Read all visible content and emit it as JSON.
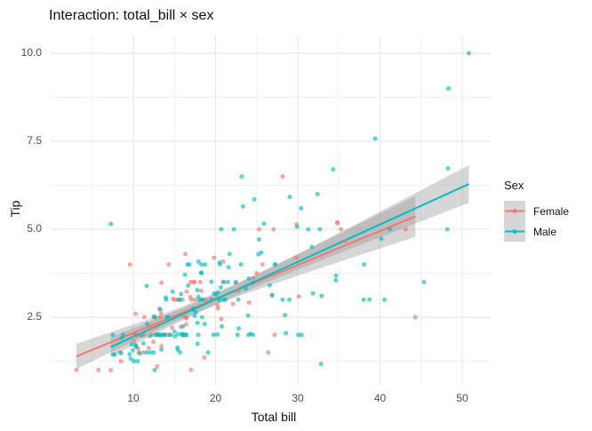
{
  "chart_data": {
    "type": "scatter",
    "title": "Interaction: total_bill × sex",
    "xlabel": "Total bill",
    "ylabel": "Tip",
    "xlim": [
      0,
      53.5
    ],
    "ylim": [
      0.55,
      10.5
    ],
    "grid": true,
    "x_ticks": {
      "values": [
        10,
        20,
        30,
        40,
        50
      ],
      "labels": [
        "10",
        "20",
        "30",
        "40",
        "50"
      ],
      "minor": [
        5,
        15,
        25,
        35,
        45
      ]
    },
    "y_ticks": {
      "values": [
        2.5,
        5,
        7.5,
        10
      ],
      "labels": [
        "2.5",
        "5.0",
        "7.5",
        "10.0"
      ],
      "minor": [
        1.25,
        3.75,
        6.25,
        8.75
      ]
    },
    "colors": {
      "female": "#F8766D",
      "male": "#00BFC4",
      "ribbon": "#999999",
      "grid_major": "#E8E8E8",
      "grid_minor": "#F2F2F2",
      "tick_text": "#4D4D4D"
    },
    "legend": {
      "title": "Sex",
      "position": "right",
      "entries": [
        {
          "label": "Female",
          "color": "#F8766D"
        },
        {
          "label": "Male",
          "color": "#00BFC4"
        }
      ]
    },
    "series": [
      {
        "name": "Female",
        "color": "#F8766D",
        "points": [
          [
            16.99,
            1.01
          ],
          [
            24.59,
            3.61
          ],
          [
            35.26,
            5.0
          ],
          [
            14.83,
            3.02
          ],
          [
            10.33,
            1.67
          ],
          [
            16.97,
            3.5
          ],
          [
            20.29,
            2.75
          ],
          [
            15.77,
            2.23
          ],
          [
            19.65,
            3.0
          ],
          [
            15.06,
            3.0
          ],
          [
            20.69,
            2.45
          ],
          [
            16.93,
            3.07
          ],
          [
            10.29,
            2.6
          ],
          [
            34.81,
            5.2
          ],
          [
            26.41,
            1.5
          ],
          [
            16.45,
            2.47
          ],
          [
            3.07,
            1.0
          ],
          [
            17.07,
            3.0
          ],
          [
            26.86,
            3.14
          ],
          [
            25.28,
            5.0
          ],
          [
            14.73,
            2.2
          ],
          [
            10.07,
            1.83
          ],
          [
            34.83,
            5.17
          ],
          [
            5.75,
            1.0
          ],
          [
            16.32,
            4.3
          ],
          [
            22.75,
            3.25
          ],
          [
            11.35,
            2.5
          ],
          [
            15.38,
            3.0
          ],
          [
            44.3,
            2.5
          ],
          [
            22.42,
            3.48
          ],
          [
            20.92,
            4.08
          ],
          [
            14.31,
            4.0
          ],
          [
            7.25,
            1.0
          ],
          [
            25.71,
            4.0
          ],
          [
            17.31,
            3.5
          ],
          [
            10.65,
            1.5
          ],
          [
            12.43,
            1.8
          ],
          [
            24.08,
            2.92
          ],
          [
            13.42,
            1.68
          ],
          [
            12.48,
            2.52
          ],
          [
            29.8,
            4.2
          ],
          [
            14.52,
            2.0
          ],
          [
            11.38,
            2.0
          ],
          [
            20.27,
            2.83
          ],
          [
            11.17,
            1.5
          ],
          [
            12.26,
            2.0
          ],
          [
            18.26,
            3.25
          ],
          [
            8.51,
            1.25
          ],
          [
            10.33,
            2.0
          ],
          [
            14.15,
            2.0
          ],
          [
            13.16,
            2.75
          ],
          [
            17.47,
            3.5
          ],
          [
            27.05,
            5.0
          ],
          [
            16.43,
            2.3
          ],
          [
            8.35,
            1.5
          ],
          [
            18.64,
            1.36
          ],
          [
            11.87,
            1.63
          ],
          [
            29.85,
            5.14
          ],
          [
            25.0,
            3.75
          ],
          [
            13.39,
            2.61
          ],
          [
            16.21,
            2.0
          ],
          [
            17.51,
            3.0
          ],
          [
            10.59,
            1.61
          ],
          [
            10.63,
            2.0
          ],
          [
            9.6,
            4.0
          ],
          [
            20.9,
            3.5
          ],
          [
            18.15,
            3.5
          ],
          [
            19.81,
            4.19
          ],
          [
            43.11,
            5.0
          ],
          [
            13.0,
            2.0
          ],
          [
            12.74,
            2.01
          ],
          [
            13.0,
            2.0
          ],
          [
            16.4,
            2.5
          ],
          [
            16.47,
            3.23
          ],
          [
            12.76,
            2.23
          ],
          [
            13.27,
            2.5
          ],
          [
            28.17,
            6.5
          ],
          [
            12.9,
            1.1
          ],
          [
            30.14,
            3.09
          ],
          [
            12.16,
            2.2
          ],
          [
            13.42,
            3.48
          ],
          [
            15.98,
            3.0
          ],
          [
            16.27,
            2.5
          ],
          [
            10.09,
            2.0
          ],
          [
            22.12,
            2.88
          ],
          [
            35.83,
            4.67
          ],
          [
            27.18,
            2.0
          ],
          [
            18.78,
            3.0
          ]
        ]
      },
      {
        "name": "Male",
        "color": "#00BFC4",
        "points": [
          [
            10.34,
            1.66
          ],
          [
            21.01,
            3.5
          ],
          [
            23.68,
            3.31
          ],
          [
            25.29,
            4.71
          ],
          [
            8.77,
            2.0
          ],
          [
            26.88,
            3.12
          ],
          [
            15.04,
            1.96
          ],
          [
            14.78,
            3.23
          ],
          [
            10.27,
            1.71
          ],
          [
            15.42,
            1.57
          ],
          [
            18.43,
            3.0
          ],
          [
            21.58,
            3.92
          ],
          [
            16.29,
            3.71
          ],
          [
            20.65,
            3.35
          ],
          [
            17.92,
            4.08
          ],
          [
            39.42,
            7.58
          ],
          [
            19.82,
            3.18
          ],
          [
            17.81,
            2.34
          ],
          [
            13.37,
            2.0
          ],
          [
            12.69,
            2.0
          ],
          [
            21.7,
            4.3
          ],
          [
            9.55,
            1.45
          ],
          [
            18.35,
            2.5
          ],
          [
            17.78,
            3.27
          ],
          [
            24.06,
            3.6
          ],
          [
            16.31,
            2.0
          ],
          [
            18.69,
            2.31
          ],
          [
            31.27,
            5.0
          ],
          [
            16.04,
            2.24
          ],
          [
            17.46,
            2.54
          ],
          [
            13.94,
            3.06
          ],
          [
            9.68,
            1.32
          ],
          [
            30.4,
            5.6
          ],
          [
            18.29,
            3.0
          ],
          [
            22.23,
            5.0
          ],
          [
            32.4,
            6.0
          ],
          [
            28.55,
            2.05
          ],
          [
            18.04,
            3.0
          ],
          [
            12.54,
            2.5
          ],
          [
            9.94,
            1.56
          ],
          [
            25.56,
            4.34
          ],
          [
            19.49,
            3.51
          ],
          [
            38.01,
            3.0
          ],
          [
            11.24,
            1.76
          ],
          [
            48.27,
            6.73
          ],
          [
            20.29,
            3.21
          ],
          [
            13.81,
            2.0
          ],
          [
            11.02,
            1.98
          ],
          [
            18.29,
            3.76
          ],
          [
            17.59,
            2.64
          ],
          [
            20.08,
            3.15
          ],
          [
            20.23,
            2.01
          ],
          [
            15.01,
            2.09
          ],
          [
            12.02,
            1.97
          ],
          [
            10.51,
            1.25
          ],
          [
            17.92,
            3.08
          ],
          [
            27.2,
            4.0
          ],
          [
            22.76,
            3.0
          ],
          [
            17.29,
            2.71
          ],
          [
            19.44,
            3.0
          ],
          [
            16.66,
            3.4
          ],
          [
            32.68,
            5.0
          ],
          [
            15.98,
            2.03
          ],
          [
            13.03,
            2.0
          ],
          [
            18.28,
            4.0
          ],
          [
            24.71,
            5.85
          ],
          [
            21.16,
            3.0
          ],
          [
            28.97,
            3.0
          ],
          [
            22.49,
            3.5
          ],
          [
            40.17,
            4.73
          ],
          [
            27.28,
            4.0
          ],
          [
            12.03,
            1.5
          ],
          [
            21.01,
            3.0
          ],
          [
            12.46,
            1.5
          ],
          [
            15.36,
            1.64
          ],
          [
            20.49,
            4.06
          ],
          [
            25.21,
            4.29
          ],
          [
            18.24,
            3.76
          ],
          [
            14.0,
            3.0
          ],
          [
            38.07,
            4.0
          ],
          [
            23.95,
            2.55
          ],
          [
            29.93,
            5.07
          ],
          [
            11.69,
            2.31
          ],
          [
            14.26,
            2.5
          ],
          [
            15.95,
            2.0
          ],
          [
            8.52,
            1.48
          ],
          [
            22.82,
            2.18
          ],
          [
            19.08,
            1.5
          ],
          [
            16.0,
            2.0
          ],
          [
            34.3,
            6.7
          ],
          [
            41.19,
            5.0
          ],
          [
            9.78,
            1.73
          ],
          [
            7.51,
            2.0
          ],
          [
            14.07,
            2.5
          ],
          [
            13.13,
            2.0
          ],
          [
            17.26,
            2.74
          ],
          [
            24.55,
            2.0
          ],
          [
            19.77,
            2.0
          ],
          [
            48.17,
            5.0
          ],
          [
            16.49,
            2.0
          ],
          [
            21.5,
            3.5
          ],
          [
            12.66,
            2.5
          ],
          [
            13.81,
            2.0
          ],
          [
            24.52,
            3.48
          ],
          [
            20.76,
            2.24
          ],
          [
            31.71,
            4.5
          ],
          [
            50.81,
            10.0
          ],
          [
            15.81,
            3.16
          ],
          [
            7.25,
            5.15
          ],
          [
            31.85,
            3.18
          ],
          [
            16.82,
            4.0
          ],
          [
            32.9,
            3.11
          ],
          [
            17.89,
            2.0
          ],
          [
            14.48,
            2.0
          ],
          [
            34.63,
            3.55
          ],
          [
            34.65,
            3.68
          ],
          [
            23.33,
            5.65
          ],
          [
            45.35,
            3.5
          ],
          [
            23.17,
            6.5
          ],
          [
            40.55,
            3.0
          ],
          [
            20.69,
            5.0
          ],
          [
            30.46,
            2.0
          ],
          [
            23.1,
            4.0
          ],
          [
            15.69,
            1.5
          ],
          [
            28.44,
            2.56
          ],
          [
            15.48,
            2.02
          ],
          [
            16.58,
            4.0
          ],
          [
            7.56,
            1.44
          ],
          [
            10.34,
            2.0
          ],
          [
            13.51,
            2.0
          ],
          [
            18.71,
            4.0
          ],
          [
            20.53,
            4.0
          ],
          [
            26.59,
            3.41
          ],
          [
            38.73,
            3.0
          ],
          [
            24.27,
            2.03
          ],
          [
            30.06,
            2.0
          ],
          [
            25.89,
            5.16
          ],
          [
            48.33,
            9.0
          ],
          [
            28.15,
            3.0
          ],
          [
            11.59,
            1.5
          ],
          [
            7.74,
            1.44
          ],
          [
            8.58,
            1.92
          ],
          [
            13.42,
            1.58
          ],
          [
            20.45,
            3.0
          ],
          [
            13.28,
            2.72
          ],
          [
            24.01,
            2.0
          ],
          [
            15.69,
            3.0
          ],
          [
            11.61,
            3.39
          ],
          [
            10.77,
            1.47
          ],
          [
            15.53,
            3.0
          ],
          [
            10.07,
            1.25
          ],
          [
            12.6,
            1.0
          ],
          [
            32.83,
            1.17
          ],
          [
            29.03,
            5.92
          ],
          [
            22.67,
            2.0
          ],
          [
            17.82,
            1.75
          ]
        ]
      }
    ],
    "smooth": [
      {
        "name": "Female",
        "color": "#F8766D",
        "x_range": [
          3.07,
          44.3
        ],
        "intercept": 1.09,
        "slope": 0.0965,
        "se": {
          "xbar": 18.06,
          "c1": 0.0286,
          "c2": 0.000452
        }
      },
      {
        "name": "Male",
        "color": "#00BFC4",
        "x_range": [
          7.25,
          50.81
        ],
        "intercept": 0.8845,
        "slope": 0.1063,
        "se": {
          "xbar": 20.74,
          "c1": 0.0247,
          "c2": 0.000291
        }
      }
    ]
  }
}
